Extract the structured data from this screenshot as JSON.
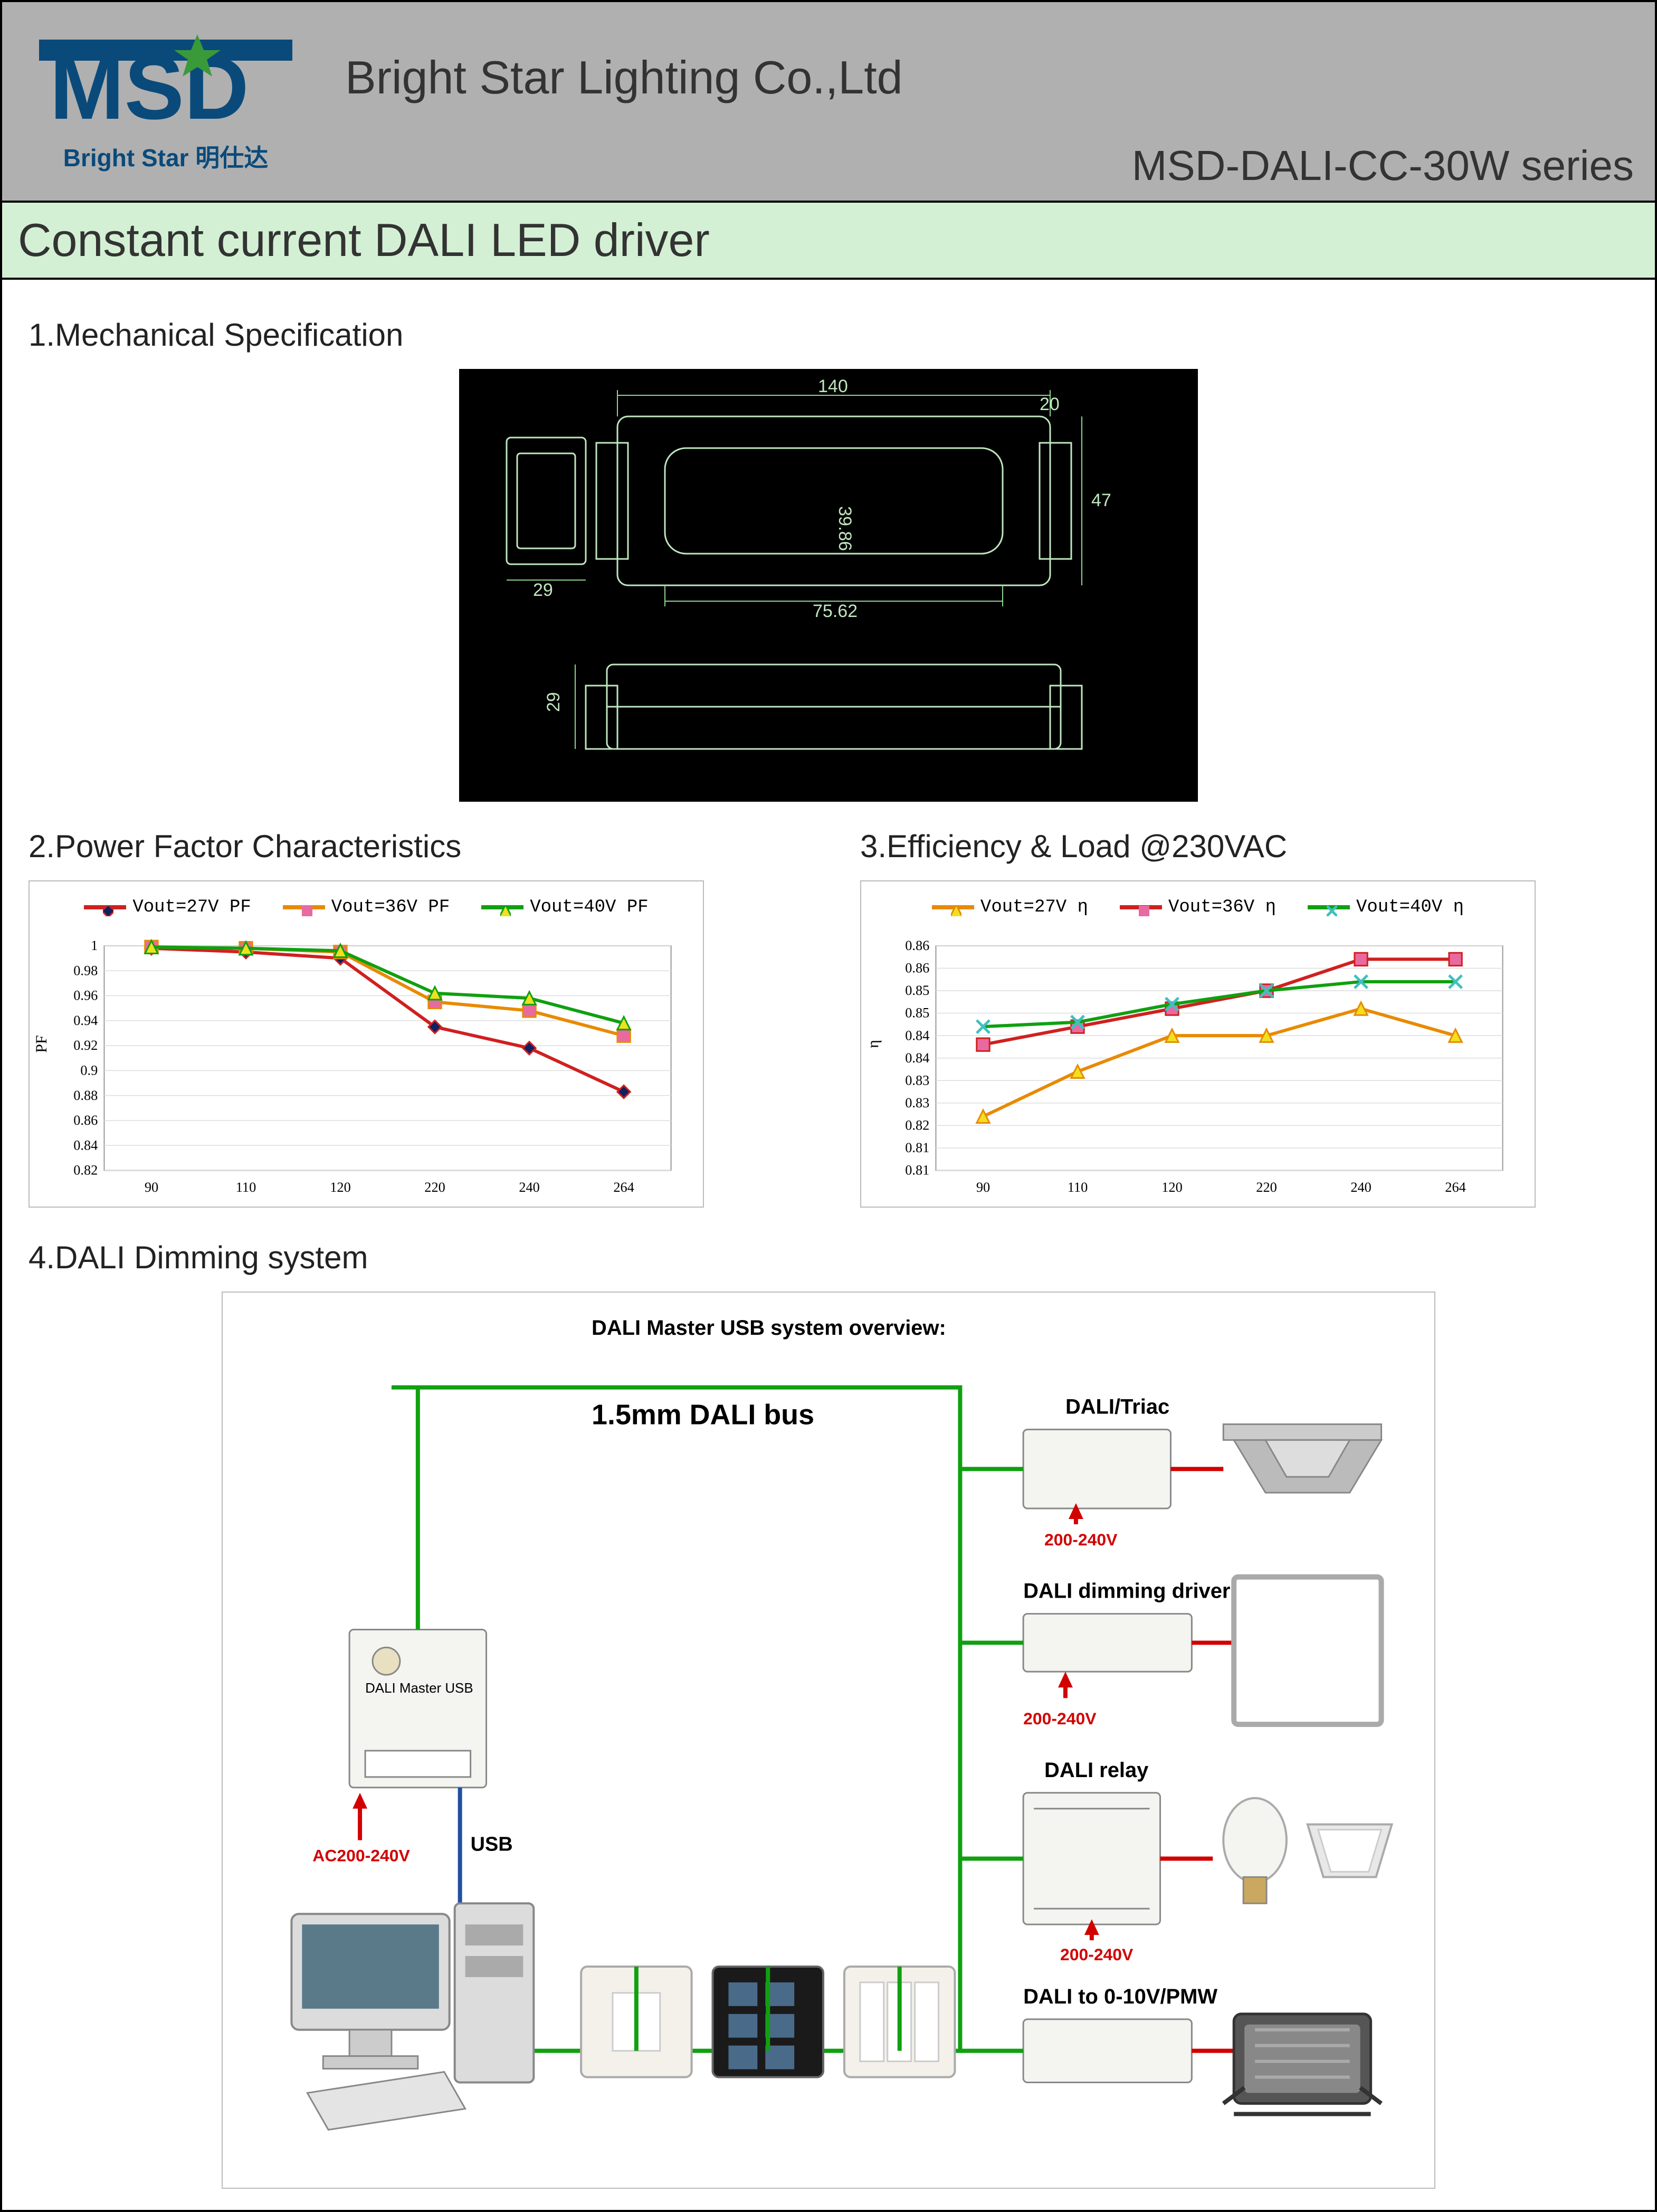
{
  "header": {
    "logo_text": "MSD",
    "logo_sub": "Bright Star 明仕达",
    "company": "Bright Star Lighting Co.,Ltd",
    "series": "MSD-DALI-CC-30W series",
    "star_color": "#3a9a3a",
    "logo_color": "#0a4a7a"
  },
  "banner": {
    "title": "Constant current DALI LED driver",
    "bg": "#d4f0d4"
  },
  "sections": {
    "s1": "1.Mechanical Specification",
    "s2": "2.Power Factor Characteristics",
    "s3": "3.Efficiency & Load @230VAC",
    "s4": "4.DALI Dimming system"
  },
  "mechanical": {
    "dims": {
      "top_width": "140",
      "inner_width": "75.62",
      "inner_height": "39.86",
      "left_tab": "29",
      "overall_h": "47",
      "side_h": "29",
      "top_diag": "20"
    },
    "line_color": "#bfe6bf",
    "bg": "#000000"
  },
  "pf_chart": {
    "type": "line",
    "x_ticks": [
      "90",
      "110",
      "120",
      "220",
      "240",
      "264"
    ],
    "y_ticks": [
      "0.82",
      "0.84",
      "0.86",
      "0.88",
      "0.9",
      "0.92",
      "0.94",
      "0.96",
      "0.98",
      "1"
    ],
    "ylim": [
      0.82,
      1.0
    ],
    "ylabel": "PF",
    "series": [
      {
        "name": "Vout=27V PF",
        "color": "#d02020",
        "marker": "diamond",
        "marker_fill": "#102060",
        "values": [
          0.998,
          0.995,
          0.99,
          0.935,
          0.918,
          0.883
        ]
      },
      {
        "name": "Vout=36V PF",
        "color": "#e88a00",
        "marker": "square",
        "marker_fill": "#e86aa0",
        "values": [
          0.999,
          0.998,
          0.995,
          0.955,
          0.948,
          0.928
        ]
      },
      {
        "name": "Vout=40V PF",
        "color": "#10a010",
        "marker": "triangle",
        "marker_fill": "#f0e020",
        "values": [
          0.999,
          0.998,
          0.996,
          0.962,
          0.958,
          0.938
        ]
      }
    ],
    "grid_color": "#dddddd",
    "border_color": "#999999",
    "bg": "#ffffff"
  },
  "eff_chart": {
    "type": "line",
    "x_ticks": [
      "90",
      "110",
      "120",
      "220",
      "240",
      "264"
    ],
    "y_ticks": [
      "0.81",
      "0.81",
      "0.82",
      "0.83",
      "0.83",
      "0.84",
      "0.84",
      "0.85",
      "0.85",
      "0.86",
      "0.86"
    ],
    "y_tick_vals": [
      0.81,
      0.815,
      0.82,
      0.825,
      0.83,
      0.835,
      0.84,
      0.845,
      0.85,
      0.855,
      0.86
    ],
    "ylim": [
      0.81,
      0.86
    ],
    "ylabel": "η",
    "series": [
      {
        "name": "Vout=27V  η",
        "color": "#e88a00",
        "marker": "triangle",
        "marker_fill": "#f0e020",
        "values": [
          0.822,
          0.832,
          0.84,
          0.84,
          0.846,
          0.84
        ]
      },
      {
        "name": "Vout=36V  η",
        "color": "#d02020",
        "marker": "square",
        "marker_fill": "#e86aa0",
        "values": [
          0.838,
          0.842,
          0.846,
          0.85,
          0.857,
          0.857
        ]
      },
      {
        "name": "Vout=40V  η",
        "color": "#10a010",
        "marker": "x",
        "marker_fill": "#40c0c0",
        "values": [
          0.842,
          0.843,
          0.847,
          0.85,
          0.852,
          0.852
        ]
      }
    ],
    "grid_color": "#dddddd",
    "border_color": "#999999",
    "bg": "#ffffff"
  },
  "dali": {
    "title": "DALI Master USB system overview:",
    "bus_label": "1.5mm DALI bus",
    "labels": {
      "master_ac": "AC200-240V",
      "usb": "USB",
      "triac": "DALI/Triac",
      "triac_v": "200-240V",
      "dim_driver": "DALI dimming driver",
      "dim_v": "200-240V",
      "relay": "DALI relay",
      "relay_v": "200-240V",
      "to010": "DALI to 0-10V/PMW"
    },
    "bus_color": "#10a010",
    "red": "#d20000"
  }
}
